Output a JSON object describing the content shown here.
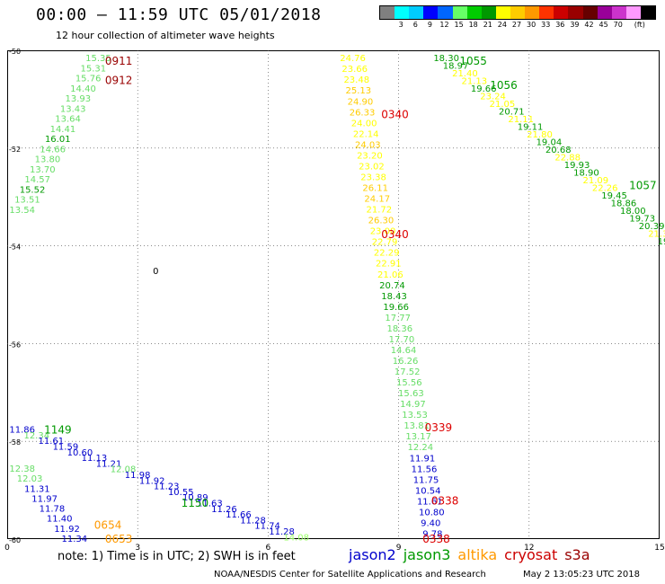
{
  "header": {
    "title": "00:00 — 11:59 UTC 05/01/2018",
    "subtitle": "12 hour collection of altimeter wave heights"
  },
  "colorbar": {
    "colors": [
      "#808080",
      "#00ffff",
      "#00ccff",
      "#0000ff",
      "#0066ff",
      "#66ff66",
      "#00cc00",
      "#009900",
      "#ffff00",
      "#ffcc00",
      "#ff9900",
      "#ff3300",
      "#cc0000",
      "#990000",
      "#660000",
      "#990099",
      "#cc33cc",
      "#ff99ff",
      "#000000"
    ],
    "labels": [
      "3",
      "6",
      "9",
      "12",
      "15",
      "18",
      "21",
      "24",
      "27",
      "30",
      "33",
      "36",
      "39",
      "42",
      "45",
      "70",
      "(ft)"
    ]
  },
  "axes": {
    "x_ticks": [
      "0",
      "3",
      "6",
      "9",
      "12",
      "15"
    ],
    "y_ticks": [
      "-50",
      "-52",
      "-54",
      "-56",
      "-58",
      "-60"
    ],
    "xlim": [
      0,
      15
    ],
    "ylim": [
      -60,
      -50
    ]
  },
  "footer": {
    "note": "note:  1) Time is in UTC;  2) SWH is in feet",
    "legend": [
      {
        "name": "jason2",
        "color": "#0000cc"
      },
      {
        "name": "jason3",
        "color": "#009900"
      },
      {
        "name": "altika",
        "color": "#ff9900"
      },
      {
        "name": "cryosat",
        "color": "#cc0000"
      },
      {
        "name": "s3a",
        "color": "#990000"
      }
    ],
    "credit": "NOAA/NESDIS Center for Satellite Applications and Research",
    "timestamp": "May  2 13:05:23 UTC 2018"
  },
  "colors": {
    "c_8": "#99ff66",
    "c_10": "#0000cc",
    "c_11": "#66dd66",
    "c_12": "#009900",
    "c_13": "#ffcc00",
    "c_14": "#ffff00",
    "pass_red": "#dd0000",
    "pass_dark": "#990000",
    "pass_orange": "#ff9900"
  },
  "map": {
    "contour_mark": "0",
    "pass_labels": [
      {
        "text": "0911",
        "lon": 2.25,
        "lat": -50.2,
        "color": "pass_dark"
      },
      {
        "text": "0912",
        "lon": 2.25,
        "lat": -50.6,
        "color": "pass_dark"
      },
      {
        "text": "0340",
        "lon": 8.6,
        "lat": -51.3,
        "color": "pass_red"
      },
      {
        "text": "0340",
        "lon": 8.6,
        "lat": -53.75,
        "color": "pass_red"
      },
      {
        "text": "1055",
        "lon": 10.4,
        "lat": -50.2,
        "color": "c_12"
      },
      {
        "text": "1056",
        "lon": 11.1,
        "lat": -50.7,
        "color": "c_12"
      },
      {
        "text": "1057",
        "lon": 14.3,
        "lat": -52.75,
        "color": "c_12"
      },
      {
        "text": "0339",
        "lon": 9.6,
        "lat": -57.7,
        "color": "pass_red"
      },
      {
        "text": "0338",
        "lon": 9.75,
        "lat": -59.2,
        "color": "pass_red"
      },
      {
        "text": "0338",
        "lon": 9.55,
        "lat": -59.98,
        "color": "pass_red"
      },
      {
        "text": "1149",
        "lon": 0.85,
        "lat": -57.75,
        "color": "c_12"
      },
      {
        "text": "1150",
        "lon": 4.0,
        "lat": -59.25,
        "color": "c_12"
      },
      {
        "text": "0654",
        "lon": 2.0,
        "lat": -59.7,
        "color": "pass_orange"
      },
      {
        "text": "0653",
        "lon": 2.25,
        "lat": -59.98,
        "color": "pass_orange"
      }
    ],
    "tracks": [
      {
        "values": [
          "15.35",
          "15.31",
          "15.76",
          "14.40",
          "13.93",
          "13.43",
          "13.64",
          "14.41",
          "16.01",
          "14.66",
          "13.80",
          "13.70",
          "14.57",
          "15.52",
          "13.51",
          "13.54"
        ],
        "colors": [
          "c_11",
          "c_11",
          "c_11",
          "c_11",
          "c_11",
          "c_11",
          "c_11",
          "c_11",
          "c_12",
          "c_11",
          "c_11",
          "c_11",
          "c_11",
          "c_12",
          "c_11",
          "c_11"
        ],
        "start": [
          1.8,
          -50.15
        ],
        "end": [
          0.05,
          -53.25
        ]
      },
      {
        "values": [
          "24.76",
          "23.66",
          "23.48",
          "25.13",
          "24.90",
          "26.33",
          "24.00",
          "22.14",
          "24.03",
          "23.20",
          "23.02",
          "23.38",
          "26.11",
          "24.17",
          "21.72",
          "26.30",
          "23.00",
          "22.79",
          "22.29",
          "22.91",
          "21.06",
          "20.74",
          "18.43",
          "19.66",
          "17.77",
          "18.36",
          "17.70",
          "14.64",
          "16.26",
          "17.52",
          "15.56",
          "15.63",
          "14.97",
          "13.53",
          "13.81",
          "13.17",
          "12.24",
          "11.91",
          "11.56",
          "11.75",
          "10.54",
          "11.61",
          "10.80",
          "9.40",
          "9.78"
        ],
        "colors": [
          "c_14",
          "c_14",
          "c_14",
          "c_13",
          "c_13",
          "c_13",
          "c_14",
          "c_14",
          "c_13",
          "c_14",
          "c_14",
          "c_14",
          "c_13",
          "c_13",
          "c_14",
          "c_13",
          "c_14",
          "c_14",
          "c_14",
          "c_14",
          "c_14",
          "c_12",
          "c_12",
          "c_12",
          "c_11",
          "c_11",
          "c_11",
          "c_11",
          "c_11",
          "c_11",
          "c_11",
          "c_11",
          "c_11",
          "c_11",
          "c_11",
          "c_11",
          "c_11",
          "c_10",
          "c_10",
          "c_10",
          "c_10",
          "c_10",
          "c_10",
          "c_10",
          "c_10"
        ],
        "start": [
          7.65,
          -50.15
        ],
        "end": [
          9.55,
          -59.88
        ]
      },
      {
        "values": [
          "18.30",
          "18.97",
          "21.40",
          "21.13",
          "19.66",
          "23.24",
          "21.05",
          "20.71",
          "21.11",
          "19.11",
          "21.80",
          "19.04",
          "20.68",
          "22.88",
          "19.93",
          "18.90",
          "21.09",
          "22.26",
          "19.45",
          "18.86",
          "18.00",
          "19.73",
          "20.39",
          "21.37",
          "19"
        ],
        "colors": [
          "c_12",
          "c_12",
          "c_14",
          "c_14",
          "c_12",
          "c_14",
          "c_14",
          "c_12",
          "c_14",
          "c_12",
          "c_14",
          "c_12",
          "c_12",
          "c_14",
          "c_12",
          "c_12",
          "c_14",
          "c_14",
          "c_12",
          "c_12",
          "c_12",
          "c_12",
          "c_12",
          "c_14",
          "c_12"
        ],
        "start": [
          9.8,
          -50.15
        ],
        "end": [
          14.95,
          -53.9
        ]
      },
      {
        "values": [
          "11.86",
          "12.34",
          "11.61",
          "11.59",
          "10.60",
          "11.13",
          "11.21",
          "12.08",
          "11.98",
          "11.92",
          "11.23",
          "10.55",
          "10.89",
          "11.63",
          "11.26",
          "11.66",
          "11.28",
          "11.74",
          "11.28",
          "14.08"
        ],
        "colors": [
          "c_10",
          "c_11",
          "c_10",
          "c_10",
          "c_10",
          "c_10",
          "c_10",
          "c_11",
          "c_10",
          "c_10",
          "c_10",
          "c_10",
          "c_10",
          "c_10",
          "c_10",
          "c_10",
          "c_10",
          "c_10",
          "c_10",
          "c_8"
        ],
        "start": [
          0.05,
          -57.75
        ],
        "end": [
          6.35,
          -59.95
        ]
      },
      {
        "values": [
          "12.38",
          "12.03",
          "11.31",
          "11.97",
          "11.78",
          "11.40",
          "11.92",
          "11.34"
        ],
        "colors": [
          "c_11",
          "c_11",
          "c_10",
          "c_10",
          "c_10",
          "c_10",
          "c_10",
          "c_10"
        ],
        "start": [
          0.05,
          -58.55
        ],
        "end": [
          1.25,
          -59.98
        ]
      }
    ]
  }
}
